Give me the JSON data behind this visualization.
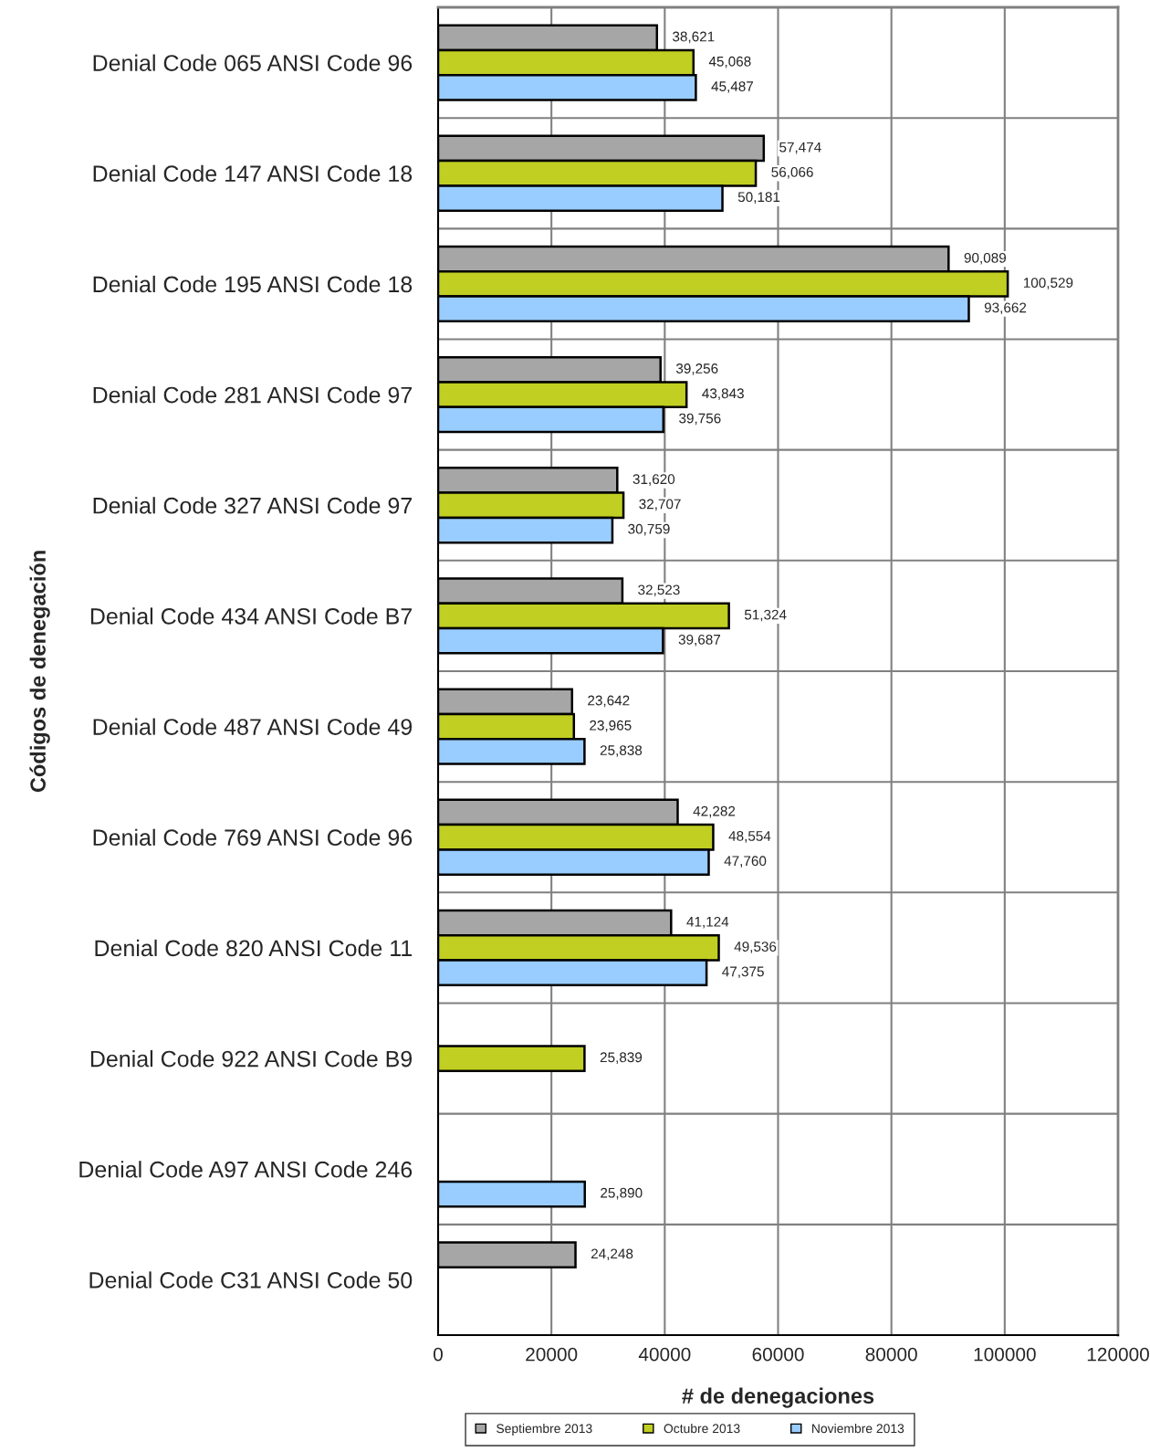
{
  "chart_data": {
    "type": "bar",
    "orientation": "horizontal",
    "xlabel": "# de denegaciones",
    "ylabel": "Códigos de denegación",
    "categories": [
      "Denial Code 065 ANSI Code 96",
      "Denial Code 147 ANSI Code 18",
      "Denial Code 195 ANSI Code 18",
      "Denial Code 281 ANSI Code 97",
      "Denial Code 327 ANSI Code 97",
      "Denial Code 434 ANSI Code B7",
      "Denial Code 487 ANSI Code 49",
      "Denial Code 769 ANSI Code 96",
      "Denial Code 820 ANSI Code 11",
      "Denial Code 922 ANSI Code B9",
      "Denial Code A97 ANSI Code 246",
      "Denial Code C31 ANSI Code 50"
    ],
    "series": [
      {
        "name": "Septiembre 2013",
        "color": "#a6a6a6",
        "values": [
          38621,
          57474,
          90089,
          39256,
          31620,
          32523,
          23642,
          42282,
          41124,
          null,
          null,
          24248
        ],
        "value_labels": [
          "38,621",
          "57,474",
          "90,089",
          "39,256",
          "31,620",
          "32,523",
          "23,642",
          "42,282",
          "41,124",
          null,
          null,
          "24,248"
        ]
      },
      {
        "name": "Octubre 2013",
        "color": "#c0cf22",
        "values": [
          45068,
          56066,
          100529,
          43843,
          32707,
          51324,
          23965,
          48554,
          49536,
          25839,
          null,
          null
        ],
        "value_labels": [
          "45,068",
          "56,066",
          "100,529",
          "43,843",
          "32,707",
          "51,324",
          "23,965",
          "48,554",
          "49,536",
          "25,839",
          null,
          null
        ]
      },
      {
        "name": "Noviembre 2013",
        "color": "#99ccff",
        "values": [
          45487,
          50181,
          93662,
          39756,
          30759,
          39687,
          25838,
          47760,
          47375,
          null,
          25890,
          null
        ],
        "value_labels": [
          "45,487",
          "50,181",
          "93,662",
          "39,756",
          "30,759",
          "39,687",
          "25,838",
          "47,760",
          "47,375",
          null,
          "25,890",
          null
        ]
      }
    ],
    "xlim": [
      0,
      120000
    ],
    "xticks": [
      0,
      20000,
      40000,
      60000,
      80000,
      100000,
      120000
    ],
    "grid": true,
    "legend": "bottom"
  }
}
